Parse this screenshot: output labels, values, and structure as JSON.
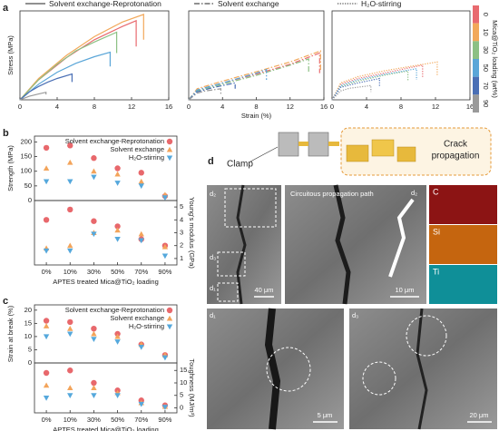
{
  "panels": [
    "a",
    "b",
    "c",
    "d"
  ],
  "chart_data": [
    {
      "type": "line",
      "title": "Solvent exchange-Reprotonation",
      "line_style": "solid",
      "y_label": "Stress (MPa)",
      "xlim": [
        0,
        16
      ],
      "xticks": [
        0,
        4,
        8,
        12,
        16
      ],
      "ylim": [
        0,
        200
      ],
      "series": [
        {
          "color": "#e86a6f",
          "x": [
            0,
            2,
            5,
            8,
            11,
            12.5,
            12.5
          ],
          "values": [
            0,
            45,
            95,
            135,
            165,
            178,
            120
          ]
        },
        {
          "color": "#f2a85a",
          "x": [
            0,
            2,
            5,
            8,
            11,
            13.3,
            13.3
          ],
          "values": [
            0,
            48,
            100,
            142,
            175,
            192,
            135
          ]
        },
        {
          "color": "#8cc084",
          "x": [
            0,
            2,
            4,
            6,
            8,
            10.4,
            10.4
          ],
          "values": [
            0,
            45,
            80,
            110,
            130,
            152,
            105
          ]
        },
        {
          "color": "#5aa6d8",
          "x": [
            0,
            2,
            4,
            6,
            8,
            9.7,
            9.7
          ],
          "values": [
            0,
            35,
            62,
            82,
            97,
            107,
            75
          ]
        },
        {
          "color": "#4a6fb5",
          "x": [
            0,
            1,
            2,
            3,
            4,
            5.6,
            5.6
          ],
          "values": [
            0,
            18,
            30,
            40,
            48,
            58,
            40
          ]
        },
        {
          "color": "#9a9a9a",
          "x": [
            0,
            1,
            2,
            2.8,
            2.8
          ],
          "values": [
            0,
            8,
            13,
            17,
            12
          ]
        }
      ]
    },
    {
      "type": "line",
      "title": "Solvent exchange",
      "line_style": "dashdot",
      "x_label": "Strain (%)",
      "xlim": [
        0,
        16
      ],
      "xticks": [
        0,
        4,
        8,
        12,
        16
      ],
      "ylim": [
        0,
        200
      ],
      "series": [
        {
          "color": "#e86a6f",
          "x": [
            0,
            1,
            4,
            8,
            12,
            15.5,
            15.5
          ],
          "values": [
            0,
            22,
            38,
            58,
            80,
            105,
            60
          ]
        },
        {
          "color": "#f2a85a",
          "x": [
            0,
            1,
            4,
            8,
            12,
            15.6,
            15.6
          ],
          "values": [
            0,
            25,
            42,
            63,
            85,
            110,
            65
          ]
        },
        {
          "color": "#8cc084",
          "x": [
            0,
            1,
            4,
            8,
            12,
            14.2,
            14.2
          ],
          "values": [
            0,
            20,
            35,
            55,
            78,
            92,
            60
          ]
        },
        {
          "color": "#5aa6d8",
          "x": [
            0,
            1,
            4,
            8,
            9.2,
            9.2
          ],
          "values": [
            0,
            22,
            38,
            60,
            68,
            45
          ]
        },
        {
          "color": "#4a6fb5",
          "x": [
            0,
            1,
            3,
            5.5,
            5.5
          ],
          "values": [
            0,
            18,
            28,
            38,
            25
          ]
        },
        {
          "color": "#9a9a9a",
          "x": [
            0,
            1,
            2,
            3.8,
            3.8
          ],
          "values": [
            0,
            15,
            20,
            25,
            12
          ]
        }
      ]
    },
    {
      "type": "line",
      "title": "H₂O-stirring",
      "line_style": "dotted",
      "legend_title": "Mica@TiO₂ loading (wt%)",
      "xlim": [
        0,
        16
      ],
      "xticks": [
        0,
        4,
        8,
        12,
        16
      ],
      "ylim": [
        0,
        200
      ],
      "series": [
        {
          "name": "0",
          "color": "#e86a6f",
          "x": [
            0,
            1,
            3,
            6,
            9,
            10.5,
            10.5
          ],
          "values": [
            0,
            35,
            48,
            60,
            72,
            78,
            50
          ]
        },
        {
          "name": "10",
          "color": "#f2a85a",
          "x": [
            0,
            1,
            3,
            6,
            9,
            12.2,
            12.2
          ],
          "values": [
            0,
            38,
            52,
            65,
            75,
            85,
            55
          ]
        },
        {
          "name": "30",
          "color": "#8cc084",
          "x": [
            0,
            1,
            3,
            6,
            8.8,
            8.8
          ],
          "values": [
            0,
            30,
            42,
            55,
            65,
            42
          ]
        },
        {
          "name": "50",
          "color": "#5aa6d8",
          "x": [
            0,
            1,
            3,
            6,
            9.8,
            9.8
          ],
          "values": [
            0,
            32,
            45,
            57,
            70,
            45
          ]
        },
        {
          "name": "70",
          "color": "#4a6fb5",
          "x": [
            0,
            1,
            3,
            5.5,
            5.5
          ],
          "values": [
            0,
            28,
            38,
            48,
            30
          ]
        },
        {
          "name": "90",
          "color": "#9a9a9a",
          "x": [
            0,
            1,
            2,
            4.5,
            4.5
          ],
          "values": [
            0,
            20,
            26,
            32,
            18
          ]
        }
      ]
    },
    {
      "type": "scatter",
      "y_label": "Strength (MPa)",
      "y_side": "left",
      "ylim": [
        0,
        220
      ],
      "yticks": [
        0,
        50,
        100,
        150,
        200
      ],
      "series": [
        {
          "name": "Solvent exchange-Reprotonation",
          "color": "#e8686c",
          "marker": "circle",
          "values": [
            180,
            188,
            145,
            110,
            95,
            15
          ]
        },
        {
          "name": "Solvent exchange",
          "color": "#f3a45b",
          "marker": "triangle-up",
          "values": [
            110,
            130,
            100,
            90,
            65,
            20
          ]
        },
        {
          "name": "H₂O-stirring",
          "color": "#55a8dc",
          "marker": "triangle-down",
          "values": [
            65,
            65,
            80,
            60,
            50,
            10
          ]
        }
      ]
    },
    {
      "type": "scatter",
      "y_label": "Young's modulus (GPa)",
      "y_side": "right",
      "x_label": "APTES treated Mica@TiO₂ loading",
      "categories": [
        "0%",
        "10%",
        "30%",
        "50%",
        "70%",
        "90%"
      ],
      "ylim": [
        0.5,
        5.5
      ],
      "yticks": [
        1,
        2,
        3,
        4,
        5
      ],
      "series": [
        {
          "color": "#e8686c",
          "marker": "circle",
          "values": [
            4.0,
            4.8,
            3.9,
            3.5,
            2.5,
            2.0
          ]
        },
        {
          "color": "#f3a45b",
          "marker": "triangle-up",
          "values": [
            1.8,
            2.0,
            3.0,
            3.2,
            2.9,
            1.9
          ]
        },
        {
          "color": "#55a8dc",
          "marker": "triangle-down",
          "values": [
            1.6,
            1.6,
            2.9,
            2.5,
            2.4,
            1.2
          ]
        }
      ]
    },
    {
      "type": "scatter",
      "y_label": "Strain at break (%)",
      "y_side": "left",
      "ylim": [
        0,
        22
      ],
      "yticks": [
        0,
        5,
        10,
        15,
        20
      ],
      "series": [
        {
          "name": "Solvent exchange-Reprotonation",
          "color": "#e8686c",
          "marker": "circle",
          "values": [
            16,
            15.5,
            13,
            11,
            7,
            3
          ]
        },
        {
          "name": "Solvent exchange",
          "color": "#f3a45b",
          "marker": "triangle-up",
          "values": [
            14,
            13,
            11,
            10,
            7,
            3
          ]
        },
        {
          "name": "H₂O-stirring",
          "color": "#55a8dc",
          "marker": "triangle-down",
          "values": [
            10,
            11,
            9,
            8,
            6,
            2
          ]
        }
      ]
    },
    {
      "type": "scatter",
      "y_label": "Toughness (MJ/m³)",
      "y_side": "right",
      "x_label": "APTES treated Mica@TiO₂ loading",
      "categories": [
        "0%",
        "10%",
        "30%",
        "50%",
        "70%",
        "90%"
      ],
      "ylim": [
        -2,
        18
      ],
      "yticks": [
        0,
        5,
        10,
        15
      ],
      "series": [
        {
          "color": "#e8686c",
          "marker": "circle",
          "values": [
            14,
            15,
            10,
            7,
            3,
            1
          ]
        },
        {
          "color": "#f3a45b",
          "marker": "triangle-up",
          "values": [
            9,
            8,
            8,
            6,
            2,
            0.5
          ]
        },
        {
          "color": "#55a8dc",
          "marker": "triangle-down",
          "values": [
            4,
            5,
            5,
            5,
            1.5,
            0.3
          ]
        }
      ]
    }
  ],
  "figure_d": {
    "clamp": "Clamp",
    "crack": [
      "Crack",
      "propagation"
    ],
    "path_label": "Circuitous propagation path",
    "d1": "d₁",
    "d2": "d₂",
    "d3": "d₃",
    "scale_d": "40 μm",
    "scale_d2": "10 μm",
    "scale_d1": "5 μm",
    "scale_d3": "20 μm",
    "eds": [
      "C",
      "Si",
      "Ti"
    ]
  }
}
